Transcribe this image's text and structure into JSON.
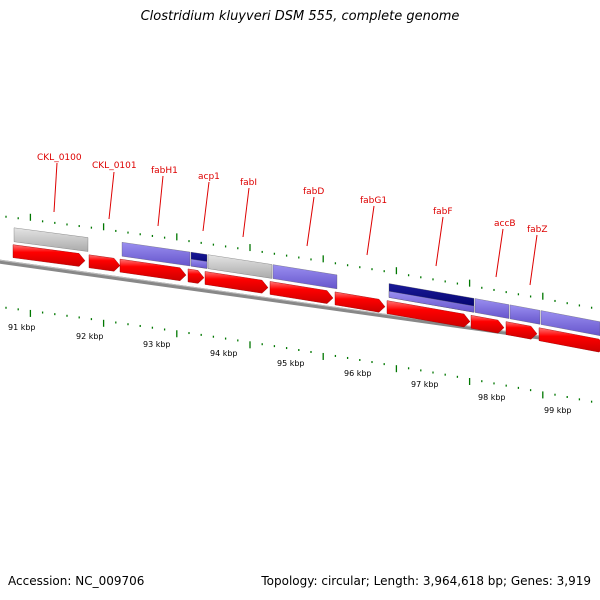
{
  "title": "Clostridium kluyveri DSM 555, complete genome",
  "footer": {
    "accession": "Accession: NC_009706",
    "topology": "Topology: circular; Length: 3,964,618 bp; Genes: 3,919"
  },
  "colors": {
    "cds_arrow": "#ff0000",
    "gene_bar_unknown": "#bbbbbb",
    "gene_bar_known": "#7766dd",
    "gene_bar_dark": "#000088",
    "label": "#dd0000",
    "tick": "#007700",
    "backbone": "#888888"
  },
  "gene_labels": [
    "CKL_0100",
    "CKL_0101",
    "fabH1",
    "acp1",
    "fabI",
    "fabD",
    "fabG1",
    "fabF",
    "accB",
    "fabZ"
  ],
  "kbp_labels": [
    "91 kbp",
    "92 kbp",
    "93 kbp",
    "94 kbp",
    "95 kbp",
    "96 kbp",
    "97 kbp",
    "98 kbp",
    "99 kbp"
  ]
}
